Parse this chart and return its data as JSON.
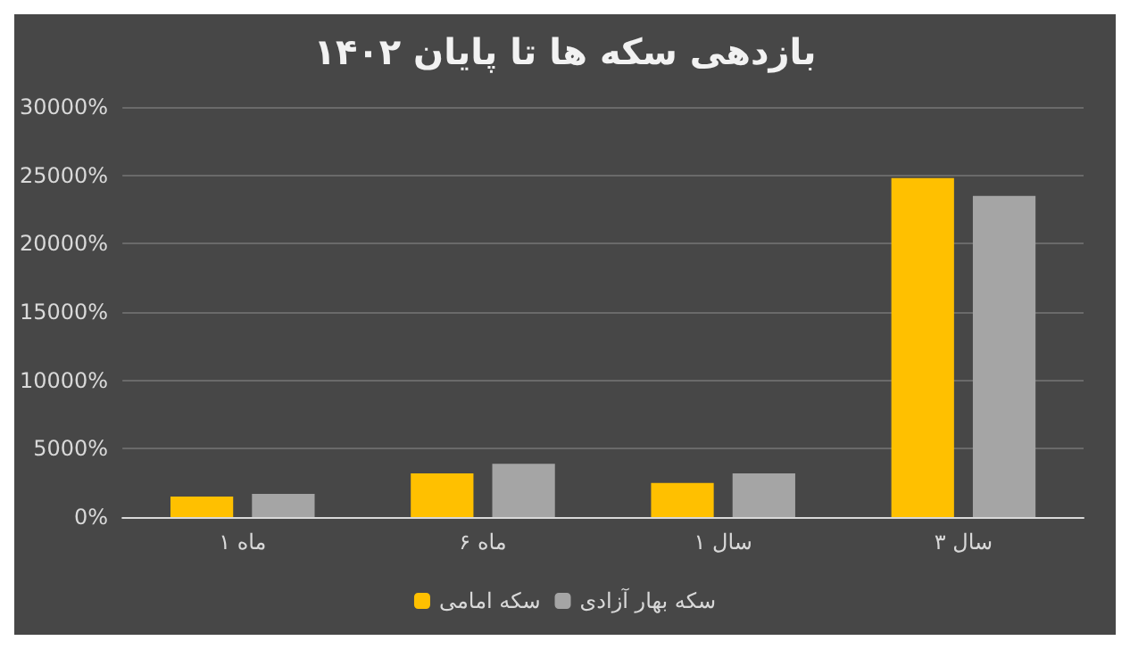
{
  "chart_data": {
    "type": "bar",
    "title": "بازدهی سکه ها تا پایان ۱۴۰۲",
    "categories": [
      "۱ ماه",
      "۶ ماه",
      "۱ سال",
      "۳ سال"
    ],
    "series": [
      {
        "name": "سکه امامی",
        "color": "#ffc000",
        "values": [
          1500,
          3200,
          2500,
          24800
        ]
      },
      {
        "name": "سکه بهار آزادی",
        "color": "#a5a5a5",
        "values": [
          1700,
          3900,
          3200,
          23500
        ]
      }
    ],
    "ylim": [
      0,
      30000
    ],
    "yticks": [
      {
        "value": 0,
        "label": "0%"
      },
      {
        "value": 5000,
        "label": "5000%"
      },
      {
        "value": 10000,
        "label": "10000%"
      },
      {
        "value": 15000,
        "label": "15000%"
      },
      {
        "value": 20000,
        "label": "20000%"
      },
      {
        "value": 25000,
        "label": "25000%"
      },
      {
        "value": 30000,
        "label": "30000%"
      }
    ],
    "grid": "y",
    "legend": "bottom"
  }
}
